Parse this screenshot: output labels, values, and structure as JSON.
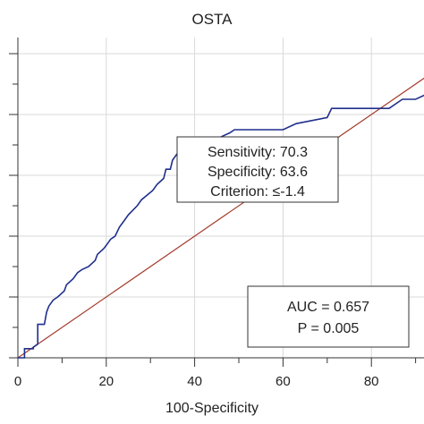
{
  "chart_data": {
    "type": "line",
    "title": "OSTA",
    "xlabel": "100-Specificity",
    "ylabel": "",
    "xlim": [
      0,
      100
    ],
    "ylim": [
      0,
      100
    ],
    "x_ticks": [
      "0",
      "20",
      "40",
      "60",
      "80"
    ],
    "x_tick_values": [
      0,
      20,
      40,
      60,
      80
    ],
    "grid": true,
    "colors": {
      "roc_curve": "#1f2f8c",
      "reference_line": "#a33a2a",
      "grid": "#d9d9d9",
      "axis": "#333333"
    },
    "series": [
      {
        "x": [
          0,
          1.5,
          1.5,
          3.5,
          3.5,
          4.5,
          4.5,
          6,
          6.5,
          7,
          8,
          9,
          10.5,
          11,
          12.5,
          13.5,
          14.5,
          16,
          17.5,
          18,
          19.5,
          20.5,
          21,
          22,
          23,
          24,
          25,
          27,
          28,
          30.5,
          31.5,
          33,
          33.5,
          34.5,
          35,
          36,
          37,
          40,
          42,
          45,
          48,
          49,
          60,
          63,
          70,
          71,
          73,
          80,
          84,
          87,
          90,
          93,
          96
        ],
        "y": [
          0,
          0,
          3,
          3,
          3.5,
          4.5,
          11,
          11,
          15,
          17,
          19,
          20,
          22,
          24,
          26,
          28,
          29,
          30,
          32,
          34,
          36,
          38,
          39,
          40,
          43,
          45,
          47,
          50,
          52,
          55,
          57,
          59,
          62,
          62,
          65,
          67,
          68,
          68,
          70,
          72,
          74,
          75,
          75,
          77,
          79,
          82,
          82,
          82,
          82,
          85,
          85,
          87,
          90
        ]
      },
      {
        "x": [
          0,
          96
        ],
        "y": [
          0,
          96
        ]
      }
    ]
  },
  "sens_box": {
    "sensitivity": "Sensitivity: 70.3",
    "specificity": "Specificity: 63.6",
    "criterion": "Criterion: ≤-1.4"
  },
  "auc_box": {
    "auc": "AUC = 0.657",
    "p": "P = 0.005"
  }
}
